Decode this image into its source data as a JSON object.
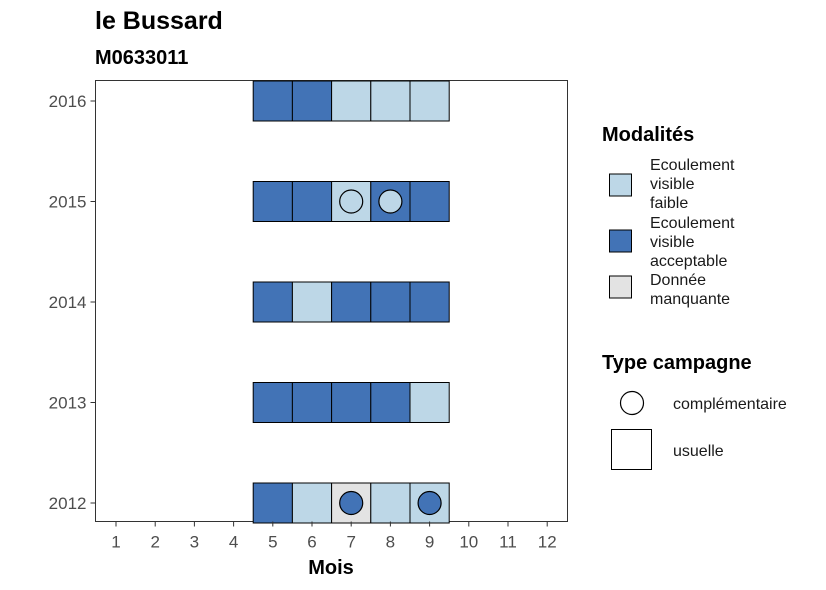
{
  "chart_data": {
    "type": "heatmap",
    "title": "le Bussard",
    "subtitle": "M0633011",
    "xlabel": "Mois",
    "ylabel": "",
    "x_ticks": [
      1,
      2,
      3,
      4,
      5,
      6,
      7,
      8,
      9,
      10,
      11,
      12
    ],
    "y_ticks": [
      2012,
      2013,
      2014,
      2015,
      2016
    ],
    "xlim": [
      0.5,
      12.5
    ],
    "colors": {
      "faible": "#bdd7e7",
      "acceptable": "#4273b6",
      "manquante": "#e3e3e3"
    },
    "legend_modalites": {
      "title": "Modalités",
      "items": [
        {
          "key": "faible",
          "lines": [
            "Ecoulement",
            "visible",
            "faible"
          ]
        },
        {
          "key": "acceptable",
          "lines": [
            "Ecoulement",
            "visible",
            "acceptable"
          ]
        },
        {
          "key": "manquante",
          "lines": [
            "Donnée",
            "manquante"
          ]
        }
      ]
    },
    "legend_type": {
      "title": "Type campagne",
      "items": [
        {
          "shape": "circle",
          "label": "complémentaire"
        },
        {
          "shape": "square",
          "label": "usuelle"
        }
      ]
    },
    "cells": [
      {
        "year": 2016,
        "month": 5,
        "value": "acceptable",
        "type": "usuelle"
      },
      {
        "year": 2016,
        "month": 6,
        "value": "acceptable",
        "type": "usuelle"
      },
      {
        "year": 2016,
        "month": 7,
        "value": "faible",
        "type": "usuelle"
      },
      {
        "year": 2016,
        "month": 8,
        "value": "faible",
        "type": "usuelle"
      },
      {
        "year": 2016,
        "month": 9,
        "value": "faible",
        "type": "usuelle"
      },
      {
        "year": 2015,
        "month": 5,
        "value": "acceptable",
        "type": "usuelle"
      },
      {
        "year": 2015,
        "month": 6,
        "value": "acceptable",
        "type": "usuelle"
      },
      {
        "year": 2015,
        "month": 7,
        "value": "faible",
        "type": "usuelle"
      },
      {
        "year": 2015,
        "month": 8,
        "value": "acceptable",
        "type": "usuelle"
      },
      {
        "year": 2015,
        "month": 9,
        "value": "acceptable",
        "type": "usuelle"
      },
      {
        "year": 2014,
        "month": 5,
        "value": "acceptable",
        "type": "usuelle"
      },
      {
        "year": 2014,
        "month": 6,
        "value": "faible",
        "type": "usuelle"
      },
      {
        "year": 2014,
        "month": 7,
        "value": "acceptable",
        "type": "usuelle"
      },
      {
        "year": 2014,
        "month": 8,
        "value": "acceptable",
        "type": "usuelle"
      },
      {
        "year": 2014,
        "month": 9,
        "value": "acceptable",
        "type": "usuelle"
      },
      {
        "year": 2013,
        "month": 5,
        "value": "acceptable",
        "type": "usuelle"
      },
      {
        "year": 2013,
        "month": 6,
        "value": "acceptable",
        "type": "usuelle"
      },
      {
        "year": 2013,
        "month": 7,
        "value": "acceptable",
        "type": "usuelle"
      },
      {
        "year": 2013,
        "month": 8,
        "value": "acceptable",
        "type": "usuelle"
      },
      {
        "year": 2013,
        "month": 9,
        "value": "faible",
        "type": "usuelle"
      },
      {
        "year": 2012,
        "month": 5,
        "value": "acceptable",
        "type": "usuelle"
      },
      {
        "year": 2012,
        "month": 6,
        "value": "faible",
        "type": "usuelle"
      },
      {
        "year": 2012,
        "month": 7,
        "value": "manquante",
        "type": "usuelle"
      },
      {
        "year": 2012,
        "month": 8,
        "value": "faible",
        "type": "usuelle"
      },
      {
        "year": 2012,
        "month": 9,
        "value": "faible",
        "type": "usuelle"
      }
    ],
    "circles": [
      {
        "year": 2015,
        "month": 7,
        "value": "faible",
        "type": "complémentaire"
      },
      {
        "year": 2015,
        "month": 8,
        "value": "faible",
        "type": "complémentaire"
      },
      {
        "year": 2012,
        "month": 7,
        "value": "acceptable",
        "type": "complémentaire"
      },
      {
        "year": 2012,
        "month": 9,
        "value": "acceptable",
        "type": "complémentaire"
      }
    ]
  }
}
